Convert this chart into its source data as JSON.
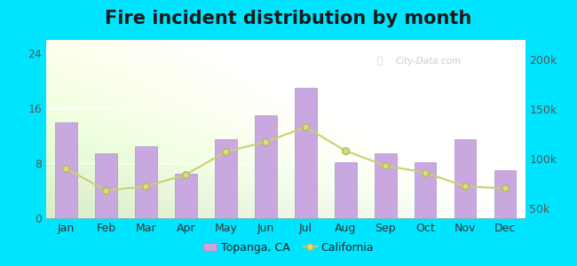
{
  "title": "Fire incident distribution by month",
  "months": [
    "Jan",
    "Feb",
    "Mar",
    "Apr",
    "May",
    "Jun",
    "Jul",
    "Aug",
    "Sep",
    "Oct",
    "Nov",
    "Dec"
  ],
  "topanga_values": [
    14.0,
    9.5,
    10.5,
    6.5,
    11.5,
    15.0,
    19.0,
    8.2,
    9.5,
    8.2,
    11.5,
    7.0
  ],
  "california_values": [
    90000,
    68000,
    72000,
    84000,
    107000,
    117000,
    132000,
    108000,
    93000,
    86000,
    72000,
    70000
  ],
  "bar_color": "#c9a8e0",
  "bar_edge_color": "#b090cc",
  "line_color": "#c8d070",
  "marker_color": "#d4dc88",
  "marker_edge_color": "#b0b855",
  "background_outer": "#00e5ff",
  "ylim_left": [
    0,
    26
  ],
  "yticks_left": [
    0,
    8,
    16,
    24
  ],
  "ylim_right": [
    40000,
    220000
  ],
  "yticks_right": [
    50000,
    100000,
    150000,
    200000
  ],
  "ytick_right_labels": [
    "50k",
    "100k",
    "150k",
    "200k"
  ],
  "legend_topanga": "Topanga, CA",
  "legend_california": "California",
  "title_fontsize": 15,
  "axis_fontsize": 9,
  "legend_fontsize": 9,
  "watermark_text": "City-Data.com"
}
